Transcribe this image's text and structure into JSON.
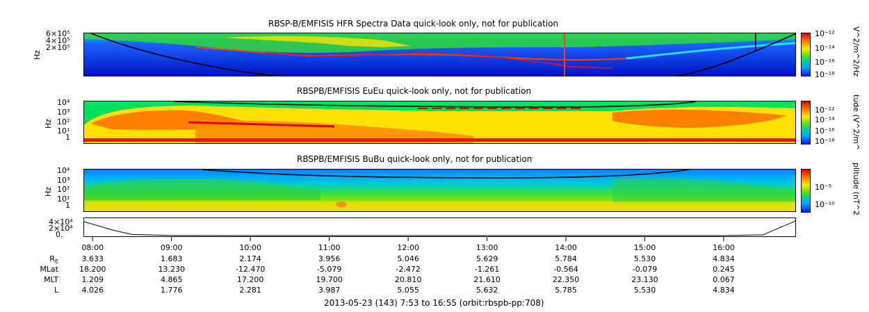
{
  "chart_data": [
    {
      "type": "heatmap",
      "title": "RBSP-B/EMFISIS  HFR Spectra Data quick-look only, not for publication",
      "ylabel": "Hz",
      "yticks": [
        "6×10⁵",
        "4×10⁵",
        "2×10⁵"
      ],
      "colorbar_label": "V^2/m^2/Hz",
      "colorbar_ticks": [
        "10⁻¹²",
        "10⁻¹⁴",
        "10⁻¹⁶",
        "10⁻¹⁸"
      ],
      "palette": [
        "#0010c8",
        "#1a60ff",
        "#00d8e0",
        "#30e040",
        "#ffe000",
        "#ff2000"
      ]
    },
    {
      "type": "heatmap",
      "title": "RBSPB/EMFISIS  EuEu quick-look only, not for publication",
      "ylabel": "Hz",
      "yticks": [
        "10⁴",
        "10³",
        "10²",
        "10¹",
        "1"
      ],
      "colorbar_label": "tude (V^2/m^",
      "colorbar_ticks": [
        "10⁻¹²",
        "10⁻¹⁴",
        "10⁻¹⁶",
        "10⁻¹⁸"
      ],
      "palette": [
        "#00e060",
        "#ffe000",
        "#ff8000",
        "#ff2000"
      ]
    },
    {
      "type": "heatmap",
      "title": "RBSPB/EMFISIS  BuBu quick-look only, not for publication",
      "ylabel": "Hz",
      "yticks": [
        "10⁴",
        "10³",
        "10²",
        "10¹",
        "1"
      ],
      "colorbar_label": "plitude (nT^2",
      "colorbar_ticks": [
        "10⁻⁵",
        "10⁻¹⁰"
      ],
      "palette": [
        "#0080ff",
        "#00c8e0",
        "#30e040",
        "#c0e000",
        "#ffe000"
      ]
    },
    {
      "type": "line",
      "title": "",
      "ylabel": "",
      "yticks": [
        "4×10⁴",
        "2×10⁴",
        "0."
      ],
      "x": [
        "07:53",
        "08:15",
        "08:30",
        "09:00",
        "10:00",
        "12:00",
        "14:00",
        "15:00",
        "16:00",
        "16:30",
        "16:55"
      ],
      "values": [
        38000,
        15000,
        3000,
        200,
        0,
        0,
        0,
        0,
        0,
        2000,
        40000
      ]
    }
  ],
  "time_ticks": [
    "08:00",
    "09:00",
    "10:00",
    "11:00",
    "12:00",
    "13:00",
    "14:00",
    "15:00",
    "16:00"
  ],
  "ephemeris": {
    "rows": [
      {
        "label": "R",
        "sub": "E",
        "values": [
          "3.633",
          "1.683",
          "2.174",
          "3.956",
          "5.046",
          "5.629",
          "5.784",
          "5.530",
          "4.834"
        ]
      },
      {
        "label": "MLat",
        "sub": "",
        "values": [
          "18.200",
          "13.230",
          "-12.470",
          "-5.079",
          "-2.472",
          "-1.261",
          "-0.564",
          "-0.079",
          "0.245"
        ]
      },
      {
        "label": "MLT",
        "sub": "",
        "values": [
          "1.209",
          "4.865",
          "17.200",
          "19.700",
          "20.810",
          "21.610",
          "22.350",
          "23.130",
          "0.067"
        ]
      },
      {
        "label": "L",
        "sub": "",
        "values": [
          "4.026",
          "1.776",
          "2.281",
          "3.987",
          "5.055",
          "5.632",
          "5.785",
          "5.530",
          "4.834"
        ]
      }
    ]
  },
  "footer": "2013-05-23 (143) 7:53 to 16:55 (orbit:rbspb-pp:708)"
}
